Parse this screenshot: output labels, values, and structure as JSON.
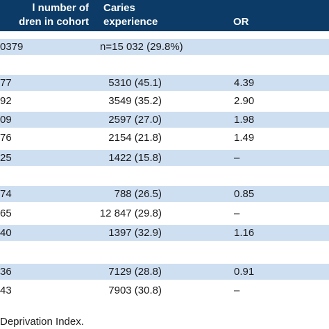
{
  "header": {
    "col1": [
      "l number of",
      "dren in cohort"
    ],
    "col2": [
      "Caries",
      "experience"
    ],
    "col3": "OR"
  },
  "rows": [
    {
      "a": "0379",
      "b": "n=15 032 (29.8%)",
      "c": "",
      "shade": true
    },
    {
      "a": "",
      "b": "",
      "c": "",
      "shade": false
    },
    {
      "a": "77",
      "b": "5310 (45.1)",
      "c": "4.39",
      "shade": true
    },
    {
      "a": "92",
      "b": "3549 (35.2)",
      "c": "2.90",
      "shade": false
    },
    {
      "a": "09",
      "b": "2597 (27.0)",
      "c": "1.98",
      "shade": true
    },
    {
      "a": "76",
      "b": "2154 (21.8)",
      "c": "1.49",
      "shade": false
    },
    {
      "a": "25",
      "b": "1422 (15.8)",
      "c": "–",
      "shade": true
    },
    {
      "a": "",
      "b": "",
      "c": "",
      "shade": false
    },
    {
      "a": "74",
      "b": "788 (26.5)",
      "c": "0.85",
      "shade": true
    },
    {
      "a": "65",
      "b": "12 847 (29.8)",
      "c": "–",
      "shade": false
    },
    {
      "a": "40",
      "b": "1397 (32.9)",
      "c": "1.16",
      "shade": true
    },
    {
      "a": "",
      "b": "",
      "c": "",
      "shade": false
    },
    {
      "a": "36",
      "b": "7129 (28.8)",
      "c": "0.91",
      "shade": true
    },
    {
      "a": "43",
      "b": "7903 (30.8)",
      "c": "–",
      "shade": false
    }
  ],
  "footer": "Deprivation Index."
}
